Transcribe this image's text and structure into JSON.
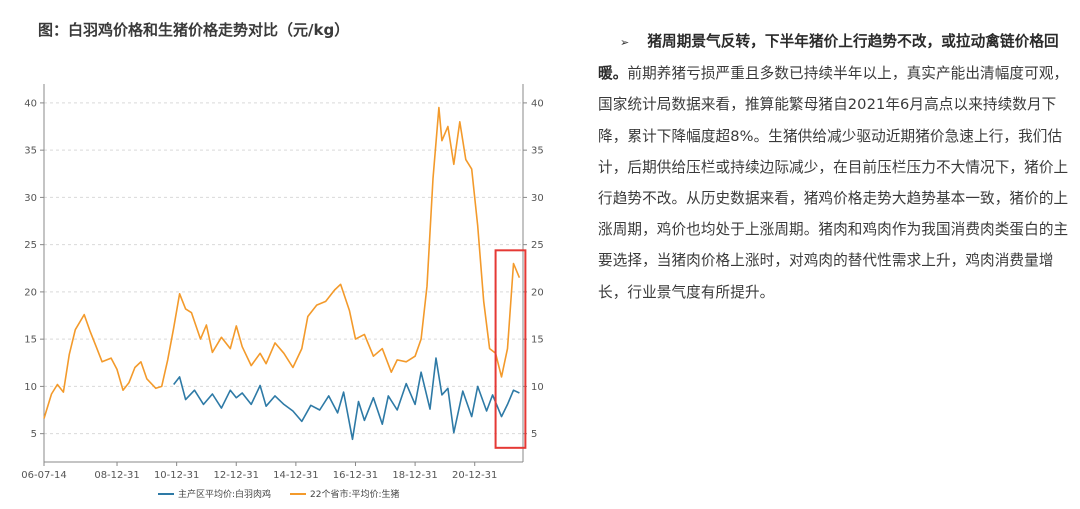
{
  "chart_data": {
    "type": "line",
    "title": "图：白羽鸡价格和生猪价格走势对比（元/kg）",
    "x_tick_labels": [
      "06-07-14",
      "08-12-31",
      "10-12-31",
      "12-12-31",
      "14-12-31",
      "16-12-31",
      "18-12-31",
      "20-12-31"
    ],
    "y_ticks": [
      5,
      10,
      15,
      20,
      25,
      30,
      35,
      40
    ],
    "ylim": [
      2,
      42
    ],
    "axes": "dual-y",
    "legend_placement": "bottom-center",
    "series": [
      {
        "name": "主产区平均价:白羽肉鸡",
        "color": "#2e7aa6",
        "x": [
          2010.9,
          2011.1,
          2011.3,
          2011.6,
          2011.9,
          2012.2,
          2012.5,
          2012.8,
          2013.0,
          2013.2,
          2013.5,
          2013.8,
          2014.0,
          2014.3,
          2014.6,
          2014.9,
          2015.2,
          2015.5,
          2015.8,
          2016.1,
          2016.4,
          2016.6,
          2016.9,
          2017.1,
          2017.3,
          2017.6,
          2017.9,
          2018.1,
          2018.4,
          2018.7,
          2019.0,
          2019.2,
          2019.5,
          2019.7,
          2019.9,
          2020.1,
          2020.3,
          2020.6,
          2020.9,
          2021.1,
          2021.4,
          2021.6,
          2021.9,
          2022.1,
          2022.3,
          2022.5
        ],
        "y": [
          10.2,
          11.0,
          8.6,
          9.6,
          8.1,
          9.2,
          7.7,
          9.6,
          8.8,
          9.3,
          8.1,
          10.1,
          7.9,
          9.0,
          8.1,
          7.4,
          6.3,
          8.0,
          7.5,
          9.0,
          7.2,
          9.4,
          4.4,
          8.4,
          6.4,
          8.8,
          6.0,
          9.0,
          7.5,
          10.3,
          8.1,
          11.5,
          7.6,
          13.0,
          9.1,
          9.8,
          5.1,
          9.5,
          6.8,
          10.0,
          7.4,
          9.1,
          6.8,
          8.1,
          9.6,
          9.3
        ]
      },
      {
        "name": "22个省市:平均价:生猪",
        "color": "#f39a2b",
        "x": [
          2006.55,
          2006.8,
          2007.0,
          2007.2,
          2007.4,
          2007.6,
          2007.9,
          2008.1,
          2008.3,
          2008.5,
          2008.8,
          2009.0,
          2009.2,
          2009.4,
          2009.6,
          2009.8,
          2010.0,
          2010.3,
          2010.5,
          2010.7,
          2010.9,
          2011.1,
          2011.3,
          2011.5,
          2011.8,
          2012.0,
          2012.2,
          2012.5,
          2012.8,
          2013.0,
          2013.2,
          2013.5,
          2013.8,
          2014.0,
          2014.3,
          2014.6,
          2014.9,
          2015.2,
          2015.4,
          2015.7,
          2016.0,
          2016.3,
          2016.5,
          2016.8,
          2017.0,
          2017.3,
          2017.6,
          2017.9,
          2018.2,
          2018.4,
          2018.7,
          2019.0,
          2019.2,
          2019.4,
          2019.6,
          2019.8,
          2019.9,
          2020.1,
          2020.3,
          2020.5,
          2020.7,
          2020.9,
          2021.1,
          2021.3,
          2021.5,
          2021.7,
          2021.9,
          2022.1,
          2022.3,
          2022.5
        ],
        "y": [
          6.6,
          9.2,
          10.2,
          9.4,
          13.4,
          16.0,
          17.6,
          15.8,
          14.2,
          12.6,
          13.0,
          11.8,
          9.6,
          10.4,
          12.0,
          12.6,
          10.8,
          9.8,
          10.0,
          12.8,
          16.2,
          19.8,
          18.2,
          17.8,
          15.0,
          16.5,
          13.6,
          15.2,
          14.0,
          16.4,
          14.2,
          12.2,
          13.5,
          12.4,
          14.6,
          13.5,
          12.0,
          14.0,
          17.4,
          18.6,
          19.0,
          20.2,
          20.8,
          18.0,
          15.0,
          15.5,
          13.2,
          14.0,
          11.5,
          12.8,
          12.6,
          13.2,
          15.0,
          20.6,
          32.0,
          39.5,
          36.0,
          37.5,
          33.5,
          38.0,
          34.0,
          33.0,
          27.0,
          19.0,
          14.0,
          13.5,
          11.0,
          14.0,
          23.0,
          21.5
        ]
      }
    ]
  },
  "highlight_box": {
    "color": "#e53935",
    "x_range": [
      2021.7,
      2022.7
    ],
    "y_range": [
      3.5,
      24.4
    ]
  },
  "paragraph": {
    "bullet": "➢",
    "lead": "猪周期景气反转，下半年猪价上行趋势不改，或拉动禽链价格回暖。",
    "body": "前期养猪亏损严重且多数已持续半年以上，真实产能出清幅度可观，国家统计局数据来看，推算能繁母猪自2021年6月高点以来持续数月下降，累计下降幅度超8%。生猪供给减少驱动近期猪价急速上行，我们估计，后期供给压栏或持续边际减少，在目前压栏压力不大情况下，猪价上行趋势不改。从历史数据来看，猪鸡价格走势大趋势基本一致，猪价的上涨周期，鸡价也均处于上涨周期。猪肉和鸡肉作为我国消费肉类蛋白的主要选择，当猪肉价格上涨时，对鸡肉的替代性需求上升，鸡肉消费量增长，行业景气度有所提升。"
  }
}
